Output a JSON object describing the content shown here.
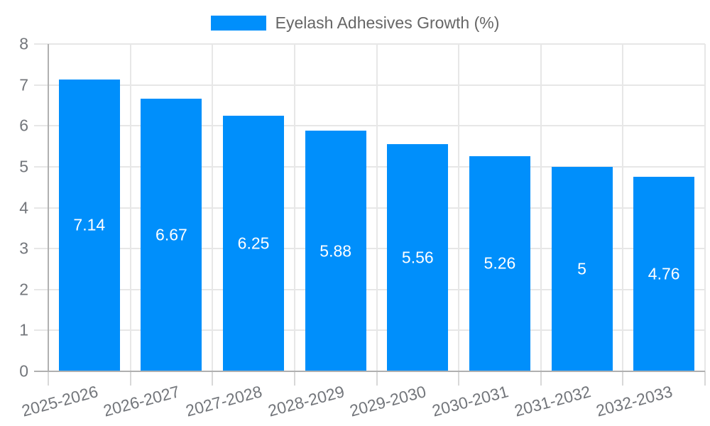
{
  "chart_data": {
    "type": "bar",
    "title": "",
    "categories": [
      "2025-2026",
      "2026-2027",
      "2027-2028",
      "2028-2029",
      "2029-2030",
      "2030-2031",
      "2031-2032",
      "2032-2033"
    ],
    "series": [
      {
        "name": "Eyelash Adhesives Growth (%)",
        "values": [
          7.14,
          6.67,
          6.25,
          5.88,
          5.56,
          5.26,
          5,
          4.76
        ],
        "labels": [
          "7.14",
          "6.67",
          "6.25",
          "5.88",
          "5.56",
          "5.26",
          "5",
          "4.76"
        ]
      }
    ],
    "xlabel": "",
    "ylabel": "",
    "ylim": [
      0,
      8
    ],
    "yticks": [
      0,
      1,
      2,
      3,
      4,
      5,
      6,
      7,
      8
    ],
    "ytick_labels": [
      "0",
      "1",
      "2",
      "3",
      "4",
      "5",
      "6",
      "7",
      "8"
    ],
    "grid": true,
    "legend_position": "top",
    "x_label_rotation_deg": -15,
    "colors": {
      "bar": "#008FFB",
      "bar_label": "#ffffff",
      "grid_line": "#e7e7e7",
      "axis_line": "#b0b0b0",
      "tick": "#d8d8d8",
      "axis_label": "#73767b",
      "legend_text": "#666666",
      "background": "#ffffff"
    }
  }
}
